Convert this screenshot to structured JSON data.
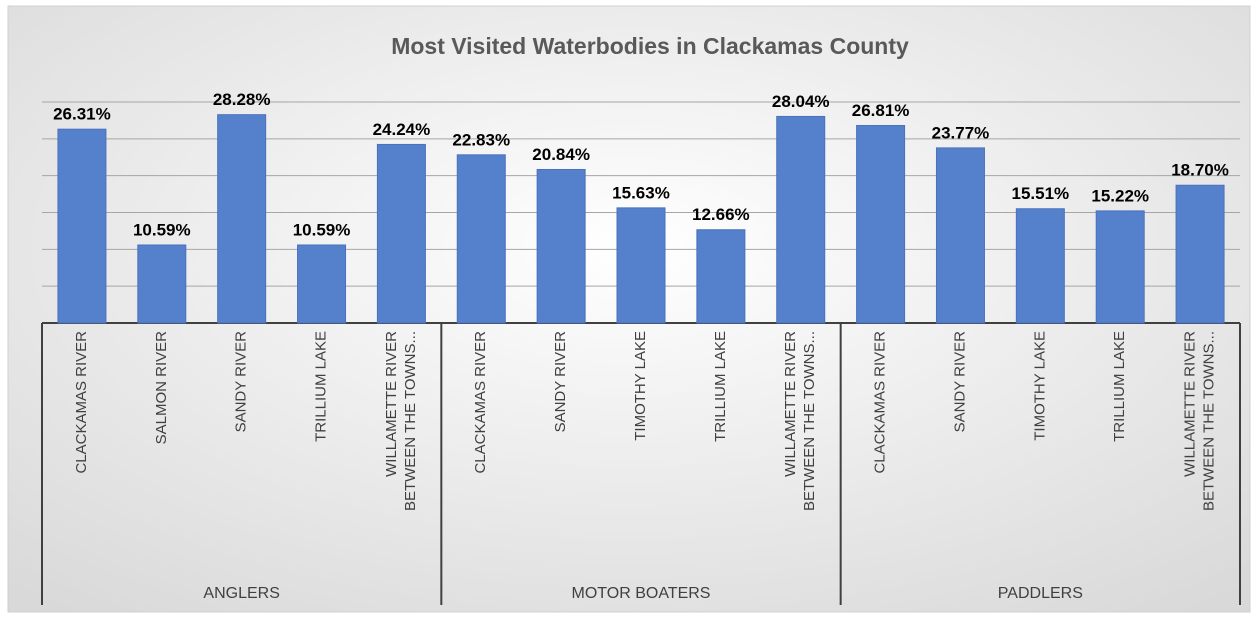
{
  "chart_data": {
    "type": "bar",
    "title": "Most Visited Waterbodies in Clackamas County",
    "color": "#5580cc",
    "ylim": [
      0,
      30
    ],
    "yticks": [
      0,
      5,
      10,
      15,
      20,
      25,
      30
    ],
    "grid": true,
    "groups": [
      {
        "name": "ANGLERS",
        "categories": [
          "CLACKAMAS RIVER",
          "SALMON RIVER",
          "SANDY RIVER",
          "TRILLIUM LAKE",
          "WILLAMETTE RIVER\nBETWEEN THE TOWNS..."
        ],
        "values": [
          26.31,
          10.59,
          28.28,
          10.59,
          24.24
        ],
        "value_labels": [
          "26.31%",
          "10.59%",
          "28.28%",
          "10.59%",
          "24.24%"
        ]
      },
      {
        "name": "MOTOR BOATERS",
        "categories": [
          "CLACKAMAS RIVER",
          "SANDY RIVER",
          "TIMOTHY LAKE",
          "TRILLIUM LAKE",
          "WILLAMETTE RIVER\nBETWEEN THE TOWNS..."
        ],
        "values": [
          22.83,
          20.84,
          15.63,
          12.66,
          28.04
        ],
        "value_labels": [
          "22.83%",
          "20.84%",
          "15.63%",
          "12.66%",
          "28.04%"
        ]
      },
      {
        "name": "PADDLERS",
        "categories": [
          "CLACKAMAS RIVER",
          "SANDY RIVER",
          "TIMOTHY LAKE",
          "TRILLIUM LAKE",
          "WILLAMETTE RIVER\nBETWEEN THE TOWNS..."
        ],
        "values": [
          26.81,
          23.77,
          15.51,
          15.22,
          18.7
        ],
        "value_labels": [
          "26.81%",
          "23.77%",
          "15.51%",
          "15.22%",
          "18.70%"
        ]
      }
    ]
  }
}
